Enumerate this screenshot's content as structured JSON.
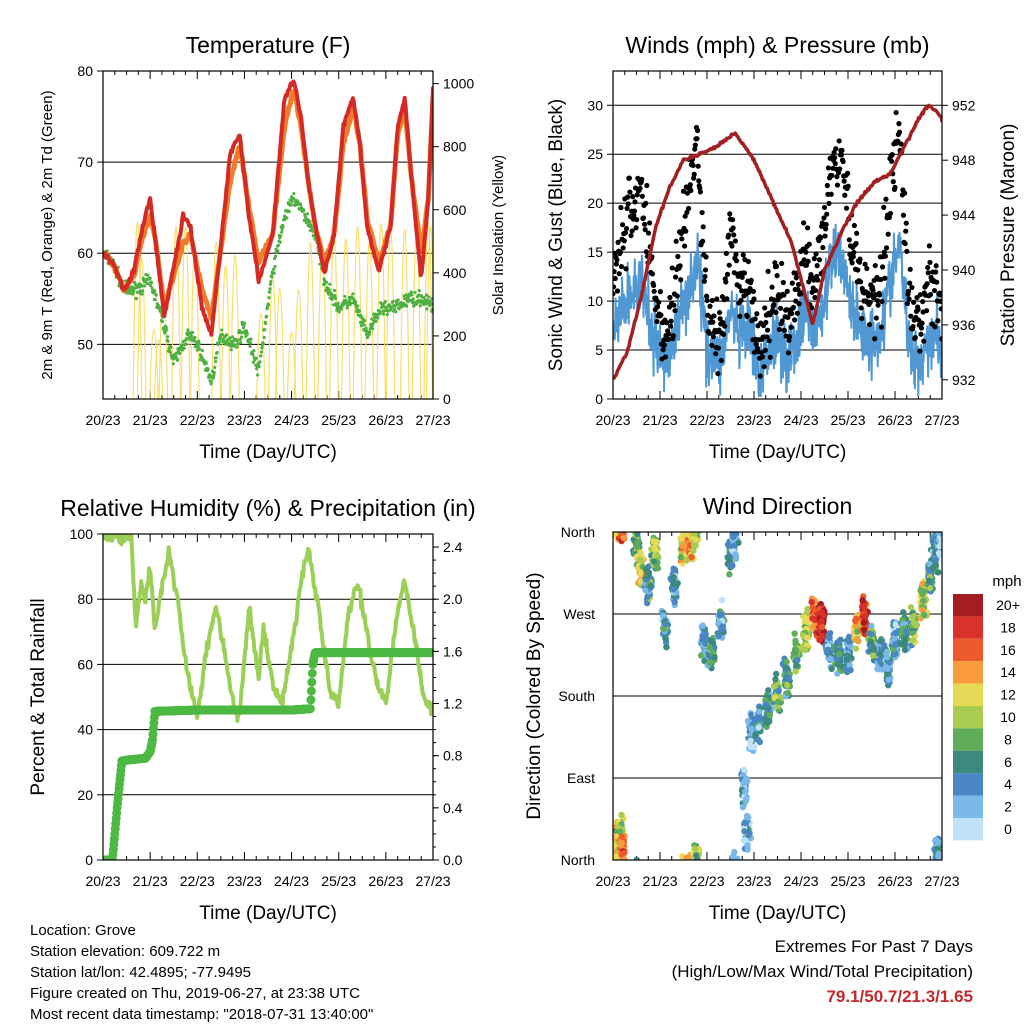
{
  "x_ticks": [
    "20/23",
    "21/23",
    "22/23",
    "23/23",
    "24/23",
    "25/23",
    "26/23",
    "27/23"
  ],
  "info": {
    "location": "Location: Grove",
    "elevation": "Station elevation: 609.722 m",
    "latlon": "Station lat/lon: 42.4895; -77.9495",
    "created": "Figure created on Thu, 2019-06-27, at 23:38 UTC",
    "recent": "Most recent data timestamp: \"2018-07-31 13:40:00\""
  },
  "extremes": {
    "line1": "Extremes For Past 7 Days",
    "line2": "(High/Low/Max Wind/Total Precipitation)",
    "values": "79.1/50.7/21.3/1.65"
  },
  "colors": {
    "temp_2m": "#d42a25",
    "temp_9m": "#f07c2a",
    "dewpoint": "#4eb040",
    "solar": "#f7dc5c",
    "gust": "#000000",
    "sonic": "#4f98d4",
    "pressure": "#a21f24",
    "rh": "#9bcf57",
    "rain": "#4db843",
    "extremes": "#c4272e"
  },
  "chart_data": [
    {
      "type": "line",
      "title": "Temperature (F)",
      "xlabel": "Time (Day/UTC)",
      "ylabel": "2m & 9m T (Red, Orange) & 2m Td (Green)",
      "y2label": "Solar Insolation (Yellow)",
      "x_unit": "days since 20/23",
      "ylim": [
        44,
        80
      ],
      "yticks": [
        50,
        60,
        70,
        80
      ],
      "y2lim": [
        0,
        1040
      ],
      "y2ticks": [
        0,
        200,
        400,
        600,
        800,
        1000
      ],
      "series": [
        {
          "name": "2m T",
          "color": "#d42a25",
          "x": [
            0,
            0.2,
            0.45,
            0.65,
            0.85,
            1.0,
            1.1,
            1.3,
            1.7,
            1.85,
            2.1,
            2.3,
            2.7,
            2.9,
            3.1,
            3.3,
            3.6,
            3.85,
            4.05,
            4.2,
            4.35,
            4.5,
            4.7,
            4.9,
            5.1,
            5.3,
            5.45,
            5.6,
            5.85,
            6.1,
            6.25,
            6.4,
            6.55,
            6.75,
            6.9,
            7.0
          ],
          "y": [
            60,
            59,
            56,
            58,
            63,
            66,
            62,
            53,
            64,
            63,
            54,
            51,
            71,
            73,
            64,
            57,
            62,
            77,
            79,
            75,
            68,
            63,
            58,
            62,
            74,
            77,
            72,
            63,
            58,
            63,
            74,
            77,
            68,
            57,
            66,
            78
          ]
        },
        {
          "name": "9m T",
          "color": "#f07c2a",
          "x": [
            0,
            0.2,
            0.45,
            0.65,
            0.85,
            1.0,
            1.1,
            1.3,
            1.7,
            1.85,
            2.1,
            2.3,
            2.7,
            2.9,
            3.1,
            3.3,
            3.6,
            3.85,
            4.05,
            4.2,
            4.35,
            4.5,
            4.7,
            4.9,
            5.1,
            5.3,
            5.45,
            5.6,
            5.85,
            6.1,
            6.25,
            6.4,
            6.55,
            6.75,
            6.9,
            7.0
          ],
          "y": [
            60,
            59,
            56,
            57.5,
            62,
            64,
            62,
            54,
            61,
            62,
            56,
            53,
            68,
            72,
            65,
            59,
            62,
            74,
            78,
            74,
            68,
            63,
            59,
            62,
            72,
            76,
            72,
            64,
            59,
            63,
            73,
            76,
            68,
            60,
            66,
            77
          ]
        },
        {
          "name": "2m Td",
          "color": "#4eb040",
          "x": [
            0,
            0.2,
            0.45,
            0.7,
            1.0,
            1.3,
            1.5,
            1.8,
            2.0,
            2.3,
            2.5,
            2.8,
            3.0,
            3.3,
            3.6,
            3.85,
            4.05,
            4.3,
            4.5,
            4.7,
            5.0,
            5.3,
            5.6,
            5.9,
            6.2,
            6.5,
            6.8,
            7.0
          ],
          "y": [
            60,
            59,
            56,
            56,
            57,
            52,
            48,
            51,
            50,
            46,
            51,
            50,
            52,
            47,
            58,
            64,
            66,
            64,
            62,
            57,
            54,
            55,
            51,
            54,
            54,
            55,
            55,
            54
          ]
        },
        {
          "name": "Solar",
          "color": "#f7dc5c",
          "x": [
            0.73,
            0.82,
            1.08,
            1.18,
            1.28,
            1.55,
            1.75,
            1.95,
            2.4,
            2.6,
            2.8,
            3.35,
            3.6,
            3.75,
            4.0,
            4.15,
            4.4,
            4.65,
            4.9,
            5.15,
            5.4,
            5.65,
            5.9,
            6.1,
            6.4,
            6.65,
            6.9,
            6.95
          ],
          "y": [
            1030,
            800,
            350,
            280,
            600,
            1000,
            1000,
            880,
            900,
            750,
            820,
            450,
            680,
            610,
            330,
            600,
            900,
            880,
            950,
            920,
            1000,
            900,
            1020,
            990,
            980,
            950,
            1030,
            1000
          ]
        }
      ]
    },
    {
      "type": "scatter",
      "title": "Winds (mph) & Pressure (mb)",
      "xlabel": "Time (Day/UTC)",
      "ylabel": "Sonic Wind & Gust (Blue, Black)",
      "y2label": "Station Pressure (Maroon)",
      "x_unit": "days since 20/23",
      "ylim": [
        0,
        33.5
      ],
      "yticks": [
        0,
        5,
        10,
        15,
        20,
        25,
        30
      ],
      "y2lim": [
        930.6,
        954.5
      ],
      "y2ticks": [
        932,
        936,
        940,
        944,
        948,
        952
      ],
      "series": [
        {
          "name": "Gust",
          "color": "#000000",
          "x": [
            0,
            0.3,
            0.6,
            0.85,
            1.1,
            1.3,
            1.5,
            1.8,
            2.0,
            2.3,
            2.5,
            2.7,
            2.9,
            3.1,
            3.3,
            3.5,
            3.7,
            3.9,
            4.1,
            4.3,
            4.5,
            4.7,
            4.9,
            5.1,
            5.3,
            5.5,
            5.7,
            5.9,
            6.1,
            6.3,
            6.5,
            6.7,
            6.9,
            7.0
          ],
          "y": [
            13,
            18,
            22,
            12,
            6,
            10,
            18,
            26,
            9,
            6,
            17,
            10,
            12,
            4,
            8,
            12,
            8,
            10,
            15,
            12,
            18,
            26,
            24,
            15,
            12,
            10,
            12,
            22,
            28,
            9,
            8,
            11,
            12,
            8
          ]
        },
        {
          "name": "Sonic Wind",
          "color": "#4f98d4",
          "x": [
            0,
            0.3,
            0.6,
            0.85,
            1.1,
            1.3,
            1.5,
            1.8,
            2.0,
            2.3,
            2.5,
            2.7,
            2.9,
            3.1,
            3.3,
            3.5,
            3.7,
            3.9,
            4.1,
            4.3,
            4.5,
            4.7,
            4.9,
            5.1,
            5.3,
            5.5,
            5.7,
            5.9,
            6.1,
            6.3,
            6.5,
            6.7,
            6.9,
            7.0
          ],
          "y": [
            7,
            10,
            12,
            6,
            4,
            6,
            10,
            14,
            5,
            4,
            9,
            6,
            7,
            2,
            5,
            7,
            4,
            6,
            9,
            7,
            10,
            15,
            14,
            9,
            7,
            6,
            7,
            12,
            16,
            5,
            4,
            6,
            7,
            4
          ]
        },
        {
          "name": "Station Pressure",
          "color": "#a21f24",
          "x": [
            0,
            0.3,
            0.6,
            0.9,
            1.2,
            1.5,
            1.9,
            2.2,
            2.6,
            3.0,
            3.4,
            3.8,
            4.1,
            4.25,
            4.5,
            4.9,
            5.2,
            5.6,
            5.9,
            6.2,
            6.5,
            6.7,
            6.9,
            7.0
          ],
          "y": [
            932,
            934,
            938,
            943,
            946,
            948,
            948.5,
            949,
            950,
            948,
            945,
            942,
            938,
            936,
            940,
            943,
            945,
            946.5,
            947,
            949,
            951,
            952,
            951.5,
            951
          ]
        }
      ]
    },
    {
      "type": "line",
      "title": "Relative Humidity (%) & Precipitation (in)",
      "xlabel": "Time (Day/UTC)",
      "ylabel": "Percent & Total Rainfall",
      "x_unit": "days since 20/23",
      "ylim": [
        0,
        100
      ],
      "yticks": [
        0,
        20,
        40,
        60,
        80,
        100
      ],
      "y2lim": [
        0,
        2.5
      ],
      "y2ticks": [
        0.0,
        0.4,
        0.8,
        1.2,
        1.6,
        2.0,
        2.4
      ],
      "series": [
        {
          "name": "Relative Humidity",
          "color": "#9bcf57",
          "x": [
            0,
            0.6,
            0.7,
            0.8,
            0.9,
            1.0,
            1.1,
            1.2,
            1.4,
            1.5,
            1.6,
            1.7,
            1.9,
            2.0,
            2.2,
            2.4,
            2.6,
            2.8,
            2.9,
            3.1,
            3.3,
            3.4,
            3.6,
            3.8,
            4.0,
            4.2,
            4.35,
            4.6,
            4.8,
            5.0,
            5.2,
            5.4,
            5.6,
            5.8,
            6.0,
            6.2,
            6.4,
            6.6,
            6.8,
            7.0
          ],
          "y": [
            99,
            99,
            70,
            85,
            80,
            90,
            70,
            80,
            95,
            85,
            80,
            65,
            50,
            44,
            65,
            78,
            62,
            45,
            44,
            78,
            55,
            72,
            54,
            48,
            65,
            85,
            96,
            75,
            52,
            48,
            75,
            85,
            70,
            55,
            48,
            72,
            86,
            70,
            50,
            46
          ]
        },
        {
          "name": "Total Rainfall",
          "color": "#4db843",
          "x": [
            0,
            0.2,
            0.3,
            0.4,
            0.6,
            0.9,
            1.0,
            1.05,
            1.1,
            2.0,
            3.0,
            4.0,
            4.4,
            4.45,
            4.5,
            5.0,
            6.0,
            7.0
          ],
          "y": [
            0,
            0,
            0.4,
            0.76,
            0.77,
            0.78,
            0.83,
            0.92,
            1.14,
            1.15,
            1.15,
            1.15,
            1.16,
            1.5,
            1.59,
            1.59,
            1.59,
            1.59
          ]
        }
      ]
    },
    {
      "type": "scatter",
      "title": "Wind Direction",
      "xlabel": "Time (Day/UTC)",
      "ylabel": "Direction (Colored By Speed)",
      "x_unit": "days since 20/23",
      "ylim": [
        0,
        360
      ],
      "y_categories": [
        {
          "label": "North",
          "value": 0
        },
        {
          "label": "East",
          "value": 90
        },
        {
          "label": "South",
          "value": 180
        },
        {
          "label": "West",
          "value": 270
        },
        {
          "label": "North",
          "value": 360
        }
      ],
      "legend": {
        "title": "mph",
        "labels": [
          "20+",
          "18",
          "16",
          "14",
          "12",
          "10",
          "8",
          "6",
          "4",
          "2",
          "0"
        ],
        "colors": [
          "#a51c23",
          "#d8322a",
          "#ed5a2c",
          "#f79b3c",
          "#e6da55",
          "#a7cc50",
          "#5fad5b",
          "#3c8a7e",
          "#4a86c4",
          "#7ab8e8",
          "#bfe2f9"
        ]
      },
      "clusters": [
        {
          "x": 0.05,
          "dir": 15,
          "spd": 14
        },
        {
          "x": 0.15,
          "dir": 30,
          "spd": 10
        },
        {
          "x": 0.2,
          "dir": 8,
          "spd": 16
        },
        {
          "x": 0.5,
          "dir": 345,
          "spd": 8
        },
        {
          "x": 0.6,
          "dir": 320,
          "spd": 12
        },
        {
          "x": 0.75,
          "dir": 300,
          "spd": 6
        },
        {
          "x": 0.9,
          "dir": 335,
          "spd": 10
        },
        {
          "x": 1.1,
          "dir": 255,
          "spd": 4
        },
        {
          "x": 1.3,
          "dir": 300,
          "spd": 4
        },
        {
          "x": 1.5,
          "dir": 345,
          "spd": 12
        },
        {
          "x": 1.65,
          "dir": 350,
          "spd": 14
        },
        {
          "x": 1.75,
          "dir": 2,
          "spd": 10
        },
        {
          "x": 1.95,
          "dir": 240,
          "spd": 4
        },
        {
          "x": 2.1,
          "dir": 230,
          "spd": 6
        },
        {
          "x": 2.3,
          "dir": 260,
          "spd": 4
        },
        {
          "x": 2.5,
          "dir": 335,
          "spd": 6
        },
        {
          "x": 2.6,
          "dir": 350,
          "spd": 2
        },
        {
          "x": 2.8,
          "dir": 80,
          "spd": 2
        },
        {
          "x": 2.85,
          "dir": 30,
          "spd": 2
        },
        {
          "x": 2.95,
          "dir": 140,
          "spd": 2
        },
        {
          "x": 3.1,
          "dir": 150,
          "spd": 4
        },
        {
          "x": 3.3,
          "dir": 165,
          "spd": 6
        },
        {
          "x": 3.5,
          "dir": 185,
          "spd": 8
        },
        {
          "x": 3.7,
          "dir": 200,
          "spd": 6
        },
        {
          "x": 3.9,
          "dir": 225,
          "spd": 8
        },
        {
          "x": 4.1,
          "dir": 250,
          "spd": 10
        },
        {
          "x": 4.3,
          "dir": 270,
          "spd": 16
        },
        {
          "x": 4.45,
          "dir": 262,
          "spd": 20
        },
        {
          "x": 4.6,
          "dir": 230,
          "spd": 4
        },
        {
          "x": 4.8,
          "dir": 225,
          "spd": 6
        },
        {
          "x": 5.0,
          "dir": 225,
          "spd": 4
        },
        {
          "x": 5.2,
          "dir": 255,
          "spd": 12
        },
        {
          "x": 5.35,
          "dir": 268,
          "spd": 18
        },
        {
          "x": 5.5,
          "dir": 240,
          "spd": 6
        },
        {
          "x": 5.7,
          "dir": 225,
          "spd": 4
        },
        {
          "x": 5.85,
          "dir": 210,
          "spd": 4
        },
        {
          "x": 6.0,
          "dir": 240,
          "spd": 4
        },
        {
          "x": 6.2,
          "dir": 250,
          "spd": 6
        },
        {
          "x": 6.4,
          "dir": 260,
          "spd": 8
        },
        {
          "x": 6.6,
          "dir": 285,
          "spd": 10
        },
        {
          "x": 6.75,
          "dir": 310,
          "spd": 6
        },
        {
          "x": 6.85,
          "dir": 340,
          "spd": 4
        },
        {
          "x": 6.9,
          "dir": 10,
          "spd": 4
        },
        {
          "x": 6.95,
          "dir": 350,
          "spd": 2
        }
      ]
    }
  ]
}
